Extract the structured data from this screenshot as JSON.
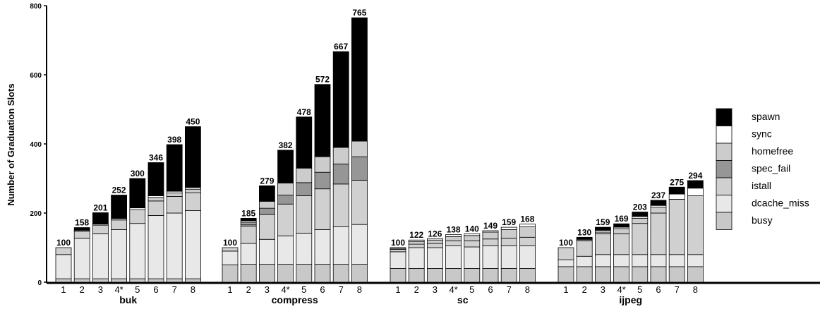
{
  "chart_data": {
    "type": "bar",
    "stacked": true,
    "ylabel": "Number of Graduation Slots",
    "ylim": [
      0,
      800
    ],
    "yticks": [
      0,
      200,
      400,
      600,
      800
    ],
    "grid": false,
    "legend_position": "right",
    "categories": [
      "1",
      "2",
      "3",
      "4*",
      "5",
      "6",
      "7",
      "8"
    ],
    "series": [
      {
        "name": "busy",
        "color": "#c8c8c8"
      },
      {
        "name": "dcache_miss",
        "color": "#e8e8e8"
      },
      {
        "name": "istall",
        "color": "#d0d0d0"
      },
      {
        "name": "spec_fail",
        "color": "#969696"
      },
      {
        "name": "homefree",
        "color": "#cccccc"
      },
      {
        "name": "sync",
        "color": "#ffffff"
      },
      {
        "name": "spawn",
        "color": "#000000"
      }
    ],
    "groups": [
      {
        "name": "buk",
        "totals": [
          100,
          158,
          201,
          252,
          300,
          346,
          398,
          450
        ],
        "stacks": [
          [
            10,
            70,
            20,
            0,
            0,
            0,
            0
          ],
          [
            10,
            117,
            20,
            0,
            0,
            3,
            8
          ],
          [
            10,
            130,
            25,
            0,
            0,
            3,
            33
          ],
          [
            10,
            142,
            28,
            0,
            0,
            4,
            68
          ],
          [
            10,
            160,
            40,
            0,
            0,
            5,
            85
          ],
          [
            10,
            183,
            42,
            0,
            10,
            5,
            96
          ],
          [
            10,
            190,
            48,
            0,
            10,
            5,
            135
          ],
          [
            10,
            197,
            52,
            0,
            10,
            5,
            176
          ]
        ]
      },
      {
        "name": "compress",
        "totals": [
          100,
          185,
          279,
          382,
          478,
          572,
          667,
          765
        ],
        "stacks": [
          [
            50,
            40,
            10,
            0,
            0,
            0,
            0
          ],
          [
            52,
            60,
            50,
            5,
            5,
            5,
            8
          ],
          [
            52,
            72,
            72,
            18,
            20,
            0,
            45
          ],
          [
            52,
            82,
            92,
            26,
            35,
            0,
            95
          ],
          [
            52,
            90,
            108,
            38,
            42,
            0,
            148
          ],
          [
            52,
            100,
            118,
            48,
            45,
            0,
            209
          ],
          [
            52,
            108,
            124,
            58,
            48,
            0,
            277
          ],
          [
            52,
            115,
            128,
            68,
            45,
            0,
            357
          ]
        ]
      },
      {
        "name": "sc",
        "totals": [
          100,
          122,
          126,
          138,
          140,
          149,
          159,
          168
        ],
        "stacks": [
          [
            40,
            48,
            7,
            0,
            3,
            2,
            0
          ],
          [
            40,
            60,
            10,
            0,
            8,
            4,
            0
          ],
          [
            40,
            60,
            12,
            0,
            10,
            4,
            0
          ],
          [
            40,
            65,
            15,
            0,
            12,
            6,
            0
          ],
          [
            40,
            62,
            18,
            0,
            15,
            5,
            0
          ],
          [
            40,
            65,
            20,
            0,
            20,
            4,
            0
          ],
          [
            40,
            65,
            22,
            0,
            25,
            7,
            0
          ],
          [
            40,
            65,
            25,
            0,
            30,
            8,
            0
          ]
        ]
      },
      {
        "name": "ijpeg",
        "totals": [
          100,
          130,
          159,
          169,
          203,
          237,
          275,
          294
        ],
        "stacks": [
          [
            45,
            20,
            35,
            0,
            0,
            0,
            0
          ],
          [
            45,
            30,
            45,
            0,
            3,
            2,
            5
          ],
          [
            45,
            35,
            60,
            0,
            5,
            5,
            9
          ],
          [
            45,
            35,
            60,
            0,
            15,
            4,
            10
          ],
          [
            45,
            35,
            90,
            0,
            15,
            5,
            13
          ],
          [
            45,
            35,
            120,
            0,
            17,
            5,
            15
          ],
          [
            45,
            35,
            160,
            0,
            0,
            15,
            20
          ],
          [
            45,
            35,
            170,
            0,
            0,
            22,
            22
          ]
        ]
      }
    ]
  }
}
